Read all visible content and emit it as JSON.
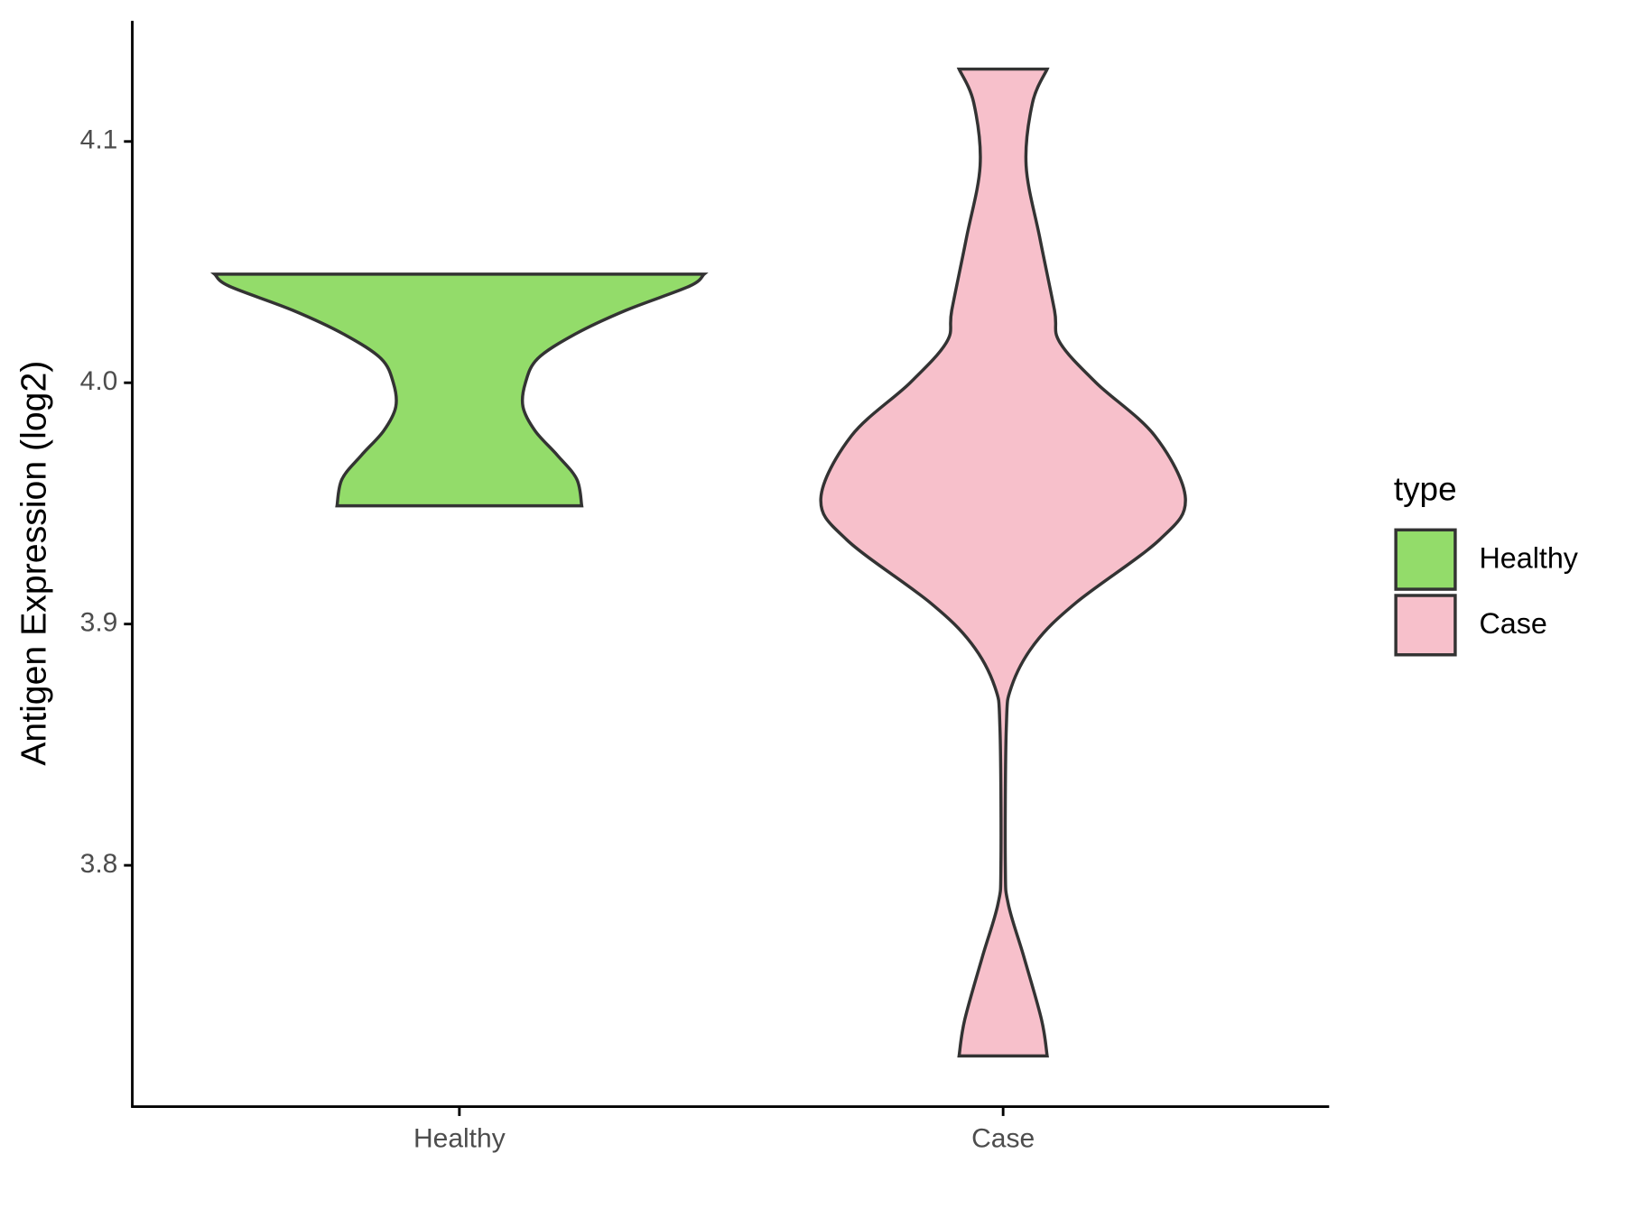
{
  "chart_data": {
    "type": "violin",
    "y_label": "Antigen Expression (log2)",
    "categories": [
      "Healthy",
      "Case"
    ],
    "ylim": [
      3.7,
      4.15
    ],
    "yticks": [
      3.8,
      3.9,
      {
        "value": 4.0,
        "label": "4.0"
      },
      4.1
    ],
    "legend_title": "type",
    "legend_position": "right",
    "violins": [
      {
        "name": "Healthy",
        "color": "#93dc6a",
        "y": [
          4.045,
          4.04,
          4.03,
          4.02,
          4.01,
          4.0,
          3.99,
          3.98,
          3.97,
          3.96,
          3.949
        ],
        "density": [
          1.0,
          0.94,
          0.68,
          0.47,
          0.32,
          0.27,
          0.26,
          0.31,
          0.4,
          0.48,
          0.5
        ]
      },
      {
        "name": "Case",
        "color": "#f7c0cb",
        "y": [
          4.13,
          4.116,
          4.09,
          4.06,
          4.03,
          4.017,
          4.0,
          3.978,
          3.952,
          3.935,
          3.909,
          3.892,
          3.874,
          3.857,
          3.8,
          3.784,
          3.762,
          3.736,
          3.721
        ],
        "density": [
          0.18,
          0.12,
          0.094,
          0.15,
          0.21,
          0.23,
          0.38,
          0.62,
          0.745,
          0.64,
          0.3,
          0.13,
          0.034,
          0.013,
          0.009,
          0.021,
          0.085,
          0.157,
          0.18
        ]
      }
    ]
  }
}
